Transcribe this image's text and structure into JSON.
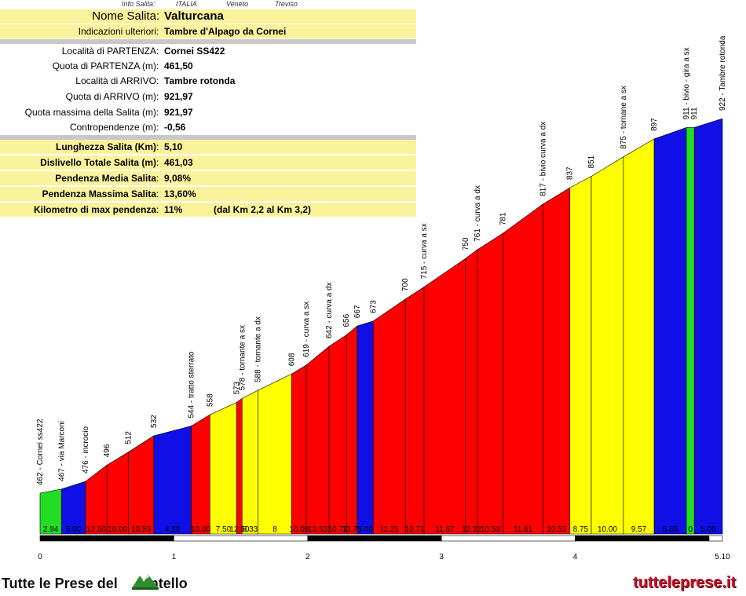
{
  "header": {
    "info_salita": "Info Salita:",
    "country": "ITALIA",
    "region": "Veneto",
    "province": "Treviso"
  },
  "info": {
    "nome_label": "Nome Salita",
    "nome_value": "Valturcana",
    "indicazioni_label": "Indicazioni ulteriori",
    "indicazioni_value": "Tambre d'Alpago da Cornei",
    "localita_partenza_label": "Località di PARTENZA",
    "localita_partenza_value": "Cornei SS422",
    "quota_partenza_label": "Quota di PARTENZA (m)",
    "quota_partenza_value": "461,50",
    "localita_arrivo_label": "Località di ARRIVO",
    "localita_arrivo_value": "Tambre rotonda",
    "quota_arrivo_label": "Quota di ARRIVO (m)",
    "quota_arrivo_value": "921,97",
    "quota_max_label": "Quota massima della Salita (m)",
    "quota_max_value": "921,97",
    "contropendenze_label": "Contropendenze (m)",
    "contropendenze_value": "-0,56",
    "lunghezza_label": "Lunghezza Salita (Km)",
    "lunghezza_value": "5,10",
    "dislivello_label": "Dislivello Totale Salita (m)",
    "dislivello_value": "461,03",
    "pendenza_media_label": "Pendenza Media Salita",
    "pendenza_media_value": "9,08%",
    "pendenza_max_label": "Pendenza Massima Salita",
    "pendenza_max_value": "13,60%",
    "km_max_label": "Kilometro di max pendenza",
    "km_max_value": "11%",
    "km_max_note": "(dal Km 2,2 al Km 3,2)",
    "colon": ":"
  },
  "footer": {
    "left_text": "Tutte le Prese del",
    "left_text2": "ontello",
    "right_text": "tutteleprese.it"
  },
  "chart_data": {
    "type": "area",
    "xlim": [
      0,
      5.1
    ],
    "x_ticks": [
      "0",
      "1",
      "2",
      "3",
      "4",
      "5.10"
    ],
    "colors": {
      "green": "#22dd22",
      "blue": "#0f0fe6",
      "red": "#ff0000",
      "yellow": "#ffff00"
    },
    "points": [
      {
        "x": 0.0,
        "y": 461.5,
        "label": "462 - Cornei ss422"
      },
      {
        "x": 0.16,
        "y": 466.5,
        "label": "467 - via Marconi"
      },
      {
        "x": 0.34,
        "y": 476,
        "label": "476 - incrocio"
      },
      {
        "x": 0.5,
        "y": 496,
        "label": "496"
      },
      {
        "x": 0.66,
        "y": 512,
        "label": "512"
      },
      {
        "x": 0.85,
        "y": 532,
        "label": "532"
      },
      {
        "x": 1.13,
        "y": 544,
        "label": "544 - tratto sterrato"
      },
      {
        "x": 1.27,
        "y": 558,
        "label": "558"
      },
      {
        "x": 1.47,
        "y": 573,
        "label": "573"
      },
      {
        "x": 1.51,
        "y": 578,
        "label": "578 - tornante a sx"
      },
      {
        "x": 1.63,
        "y": 588,
        "label": "588 - tornante a dx"
      },
      {
        "x": 1.88,
        "y": 608,
        "label": "608"
      },
      {
        "x": 1.99,
        "y": 619,
        "label": "619 - curva a sx"
      },
      {
        "x": 2.16,
        "y": 642,
        "label": "642 - curva a dx"
      },
      {
        "x": 2.29,
        "y": 656,
        "label": "656"
      },
      {
        "x": 2.37,
        "y": 667,
        "label": "667"
      },
      {
        "x": 2.49,
        "y": 673,
        "label": "673"
      },
      {
        "x": 2.73,
        "y": 700,
        "label": "700"
      },
      {
        "x": 2.87,
        "y": 715,
        "label": "715 - curva a sx"
      },
      {
        "x": 3.18,
        "y": 750,
        "label": "750"
      },
      {
        "x": 3.27,
        "y": 761,
        "label": "761 - curva a dx"
      },
      {
        "x": 3.46,
        "y": 781,
        "label": "781"
      },
      {
        "x": 3.76,
        "y": 817,
        "label": "817 - bivio curva a dx"
      },
      {
        "x": 3.96,
        "y": 837,
        "label": "837"
      },
      {
        "x": 4.12,
        "y": 851,
        "label": "851"
      },
      {
        "x": 4.36,
        "y": 875,
        "label": "875 - tornane a sx"
      },
      {
        "x": 4.59,
        "y": 897,
        "label": "897"
      },
      {
        "x": 4.83,
        "y": 911,
        "label": "911 - bivio - gira a sx"
      },
      {
        "x": 4.89,
        "y": 911,
        "label": "911"
      },
      {
        "x": 5.1,
        "y": 922,
        "label": "922 - Tambre rotonda"
      }
    ],
    "segments": [
      {
        "grade": "2.94",
        "color": "green"
      },
      {
        "grade": "5.00",
        "color": "blue"
      },
      {
        "grade": "12.50",
        "color": "red"
      },
      {
        "grade": "10.00",
        "color": "red"
      },
      {
        "grade": "10.53",
        "color": "red"
      },
      {
        "grade": "4.29",
        "color": "blue"
      },
      {
        "grade": "10.00",
        "color": "red"
      },
      {
        "grade": "7.50",
        "color": "yellow"
      },
      {
        "grade": "12.50",
        "color": "red"
      },
      {
        "grade": "8.33",
        "color": "yellow"
      },
      {
        "grade": "8",
        "color": "yellow"
      },
      {
        "grade": "10.00",
        "color": "red"
      },
      {
        "grade": "13.53",
        "color": "red"
      },
      {
        "grade": "10.77",
        "color": "red"
      },
      {
        "grade": "13.75",
        "color": "red"
      },
      {
        "grade": "5.00",
        "color": "blue"
      },
      {
        "grade": "11.25",
        "color": "red"
      },
      {
        "grade": "10.71",
        "color": "red"
      },
      {
        "grade": "11.67",
        "color": "red"
      },
      {
        "grade": "12.22",
        "color": "red"
      },
      {
        "grade": "10.53",
        "color": "red"
      },
      {
        "grade": "11.61",
        "color": "red"
      },
      {
        "grade": "10.53",
        "color": "red"
      },
      {
        "grade": "8.75",
        "color": "yellow"
      },
      {
        "grade": "10.00",
        "color": "yellow"
      },
      {
        "grade": "9.57",
        "color": "yellow"
      },
      {
        "grade": "5.83",
        "color": "blue"
      },
      {
        "grade": "0",
        "color": "green"
      },
      {
        "grade": "5.00",
        "color": "blue"
      }
    ]
  }
}
